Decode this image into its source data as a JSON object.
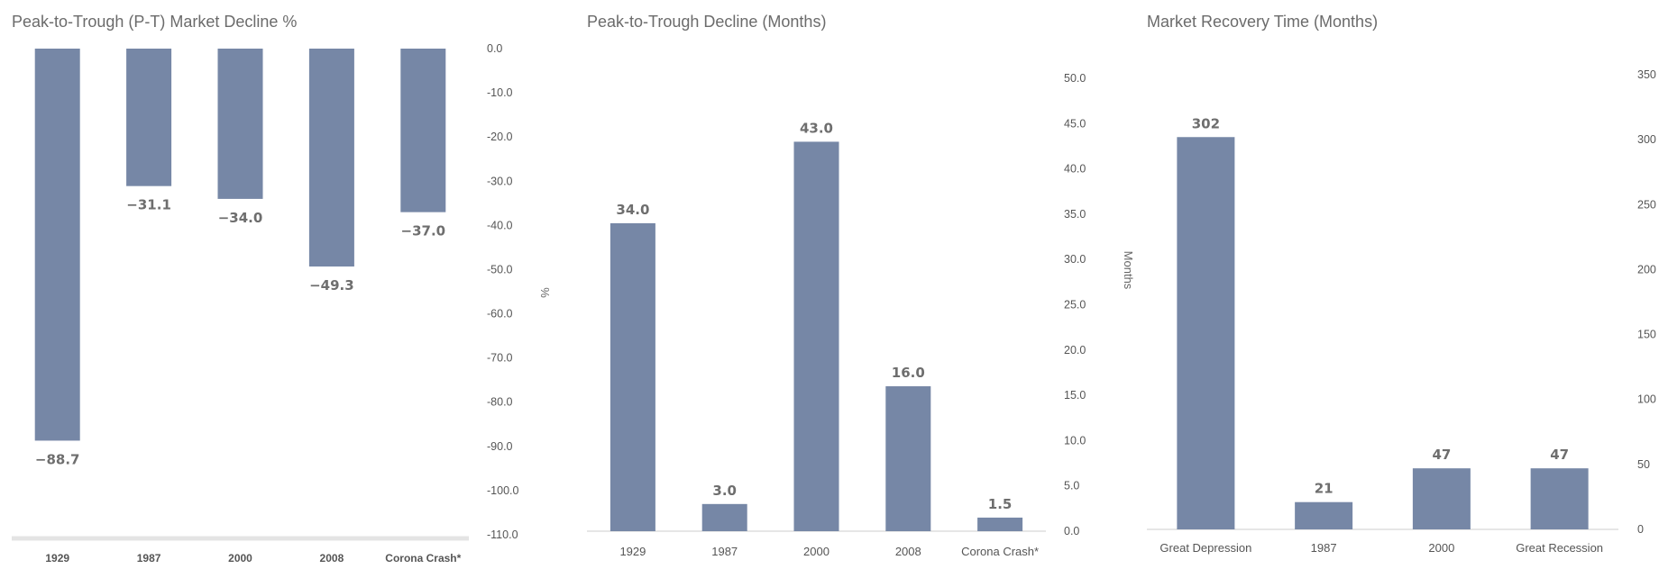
{
  "chart_data": [
    {
      "type": "bar",
      "title": "Peak-to-Trough (P-T) Market Decline %",
      "categories": [
        "1929",
        "1987",
        "2000",
        "2008",
        "Corona Crash*"
      ],
      "values": [
        -88.7,
        -31.1,
        -34.0,
        -49.3,
        -37.0
      ],
      "value_labels": [
        "−88.7",
        "−31.1",
        "−34.0",
        "−49.3",
        "−37.0"
      ],
      "ylabel": "%",
      "ylim": [
        -110,
        0
      ],
      "yticks": [
        0,
        -10,
        -20,
        -30,
        -40,
        -50,
        -60,
        -70,
        -80,
        -90,
        -100,
        -110
      ],
      "ytick_labels": [
        "0.0",
        "-10.0",
        "-20.0",
        "-30.0",
        "-40.0",
        "-50.0",
        "-60.0",
        "-70.0",
        "-80.0",
        "-90.0",
        "-100.0",
        "-110.0"
      ],
      "grid": false,
      "bar_color": "#7687a6"
    },
    {
      "type": "bar",
      "title": "Peak-to-Trough Decline (Months)",
      "categories": [
        "1929",
        "1987",
        "2000",
        "2008",
        "Corona Crash*"
      ],
      "values": [
        34.0,
        3.0,
        43.0,
        16.0,
        1.5
      ],
      "value_labels": [
        "34.0",
        "3.0",
        "43.0",
        "16.0",
        "1.5"
      ],
      "ylabel": "Months",
      "ylim": [
        0,
        50
      ],
      "yticks": [
        0,
        5,
        10,
        15,
        20,
        25,
        30,
        35,
        40,
        45,
        50
      ],
      "ytick_labels": [
        "0.0",
        "5.0",
        "10.0",
        "15.0",
        "20.0",
        "25.0",
        "30.0",
        "35.0",
        "40.0",
        "45.0",
        "50.0"
      ],
      "grid": false,
      "bar_color": "#7687a6"
    },
    {
      "type": "bar",
      "title": "Market Recovery Time (Months)",
      "categories": [
        "Great Depression",
        "1987",
        "2000",
        "Great Recession"
      ],
      "values": [
        302,
        21,
        47,
        47
      ],
      "value_labels": [
        "302",
        "21",
        "47",
        "47"
      ],
      "ylabel": "",
      "ylim": [
        0,
        350
      ],
      "yticks": [
        0,
        50,
        100,
        150,
        200,
        250,
        300,
        350
      ],
      "ytick_labels": [
        "0",
        "50",
        "100",
        "150",
        "200",
        "250",
        "300",
        "350"
      ],
      "grid": false,
      "bar_color": "#7687a6"
    }
  ]
}
